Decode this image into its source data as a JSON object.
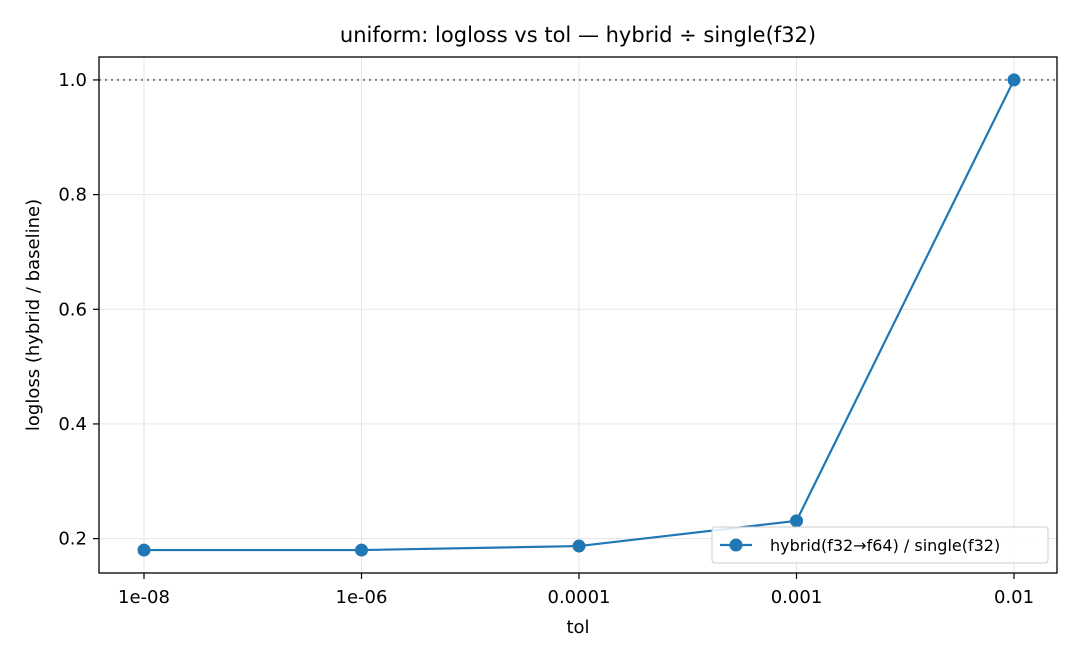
{
  "chart_data": {
    "type": "line",
    "title": "uniform: logloss vs tol — hybrid ÷ single(f32)",
    "xlabel": "tol",
    "ylabel": "logloss (hybrid / baseline)",
    "categories": [
      "1e-08",
      "1e-06",
      "0.0001",
      "0.001",
      "0.01"
    ],
    "series": [
      {
        "name": "hybrid(f32→f64) / single(f32)",
        "values": [
          0.18,
          0.18,
          0.187,
          0.231,
          1.0
        ],
        "color": "#1f77b4",
        "marker": "circle"
      }
    ],
    "yticks": [
      "0.2",
      "0.4",
      "0.6",
      "0.8",
      "1.0"
    ],
    "ylim": [
      0.14,
      1.04
    ],
    "reference_line": {
      "y": 1.0,
      "style": "dotted",
      "color": "#808080"
    },
    "grid": true,
    "legend_position": "lower-right"
  }
}
